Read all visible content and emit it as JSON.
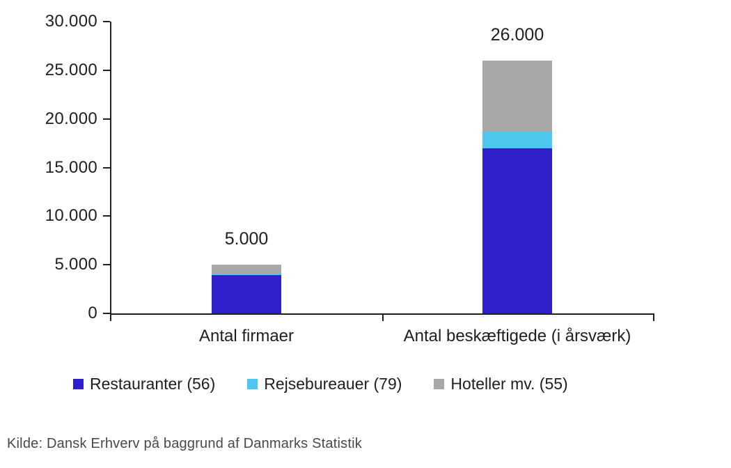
{
  "source": {
    "text": "Kilde: Dansk Erhverv på baggrund af Danmarks Statistik"
  },
  "colors": {
    "axis": "#1f1f1f",
    "label_text": "#1e1e1e",
    "source_text": "#45494e",
    "background": "#ffffff",
    "restauranter": "#2e20ca",
    "rejsebureauer": "#4dc6f0",
    "hoteller": "#a6a8aa"
  },
  "chart_data": {
    "type": "bar",
    "stacked": true,
    "title": "",
    "xlabel": "",
    "ylabel": "",
    "grid": false,
    "legend_position": "bottom",
    "categories": [
      "Antal firmaer",
      "Antal beskæftigede (i årsværk)"
    ],
    "series": [
      {
        "name": "Restauranter (56)",
        "color": "#2e20ca",
        "values": [
          3950,
          17000
        ]
      },
      {
        "name": "Rejsebureauer (79)",
        "color": "#4dc6f0",
        "values": [
          150,
          1700
        ]
      },
      {
        "name": "Hoteller mv. (55)",
        "color": "#a6a8aa",
        "values": [
          900,
          7300
        ]
      }
    ],
    "bar_total_labels": [
      "5.000",
      "26.000"
    ],
    "bar_totals": [
      5000,
      26000
    ],
    "ylim": [
      0,
      30000
    ],
    "y_ticks": [
      0,
      5000,
      10000,
      15000,
      20000,
      25000,
      30000
    ],
    "y_tick_labels": [
      "0",
      "5.000",
      "10.000",
      "15.000",
      "20.000",
      "25.000",
      "30.000"
    ]
  }
}
